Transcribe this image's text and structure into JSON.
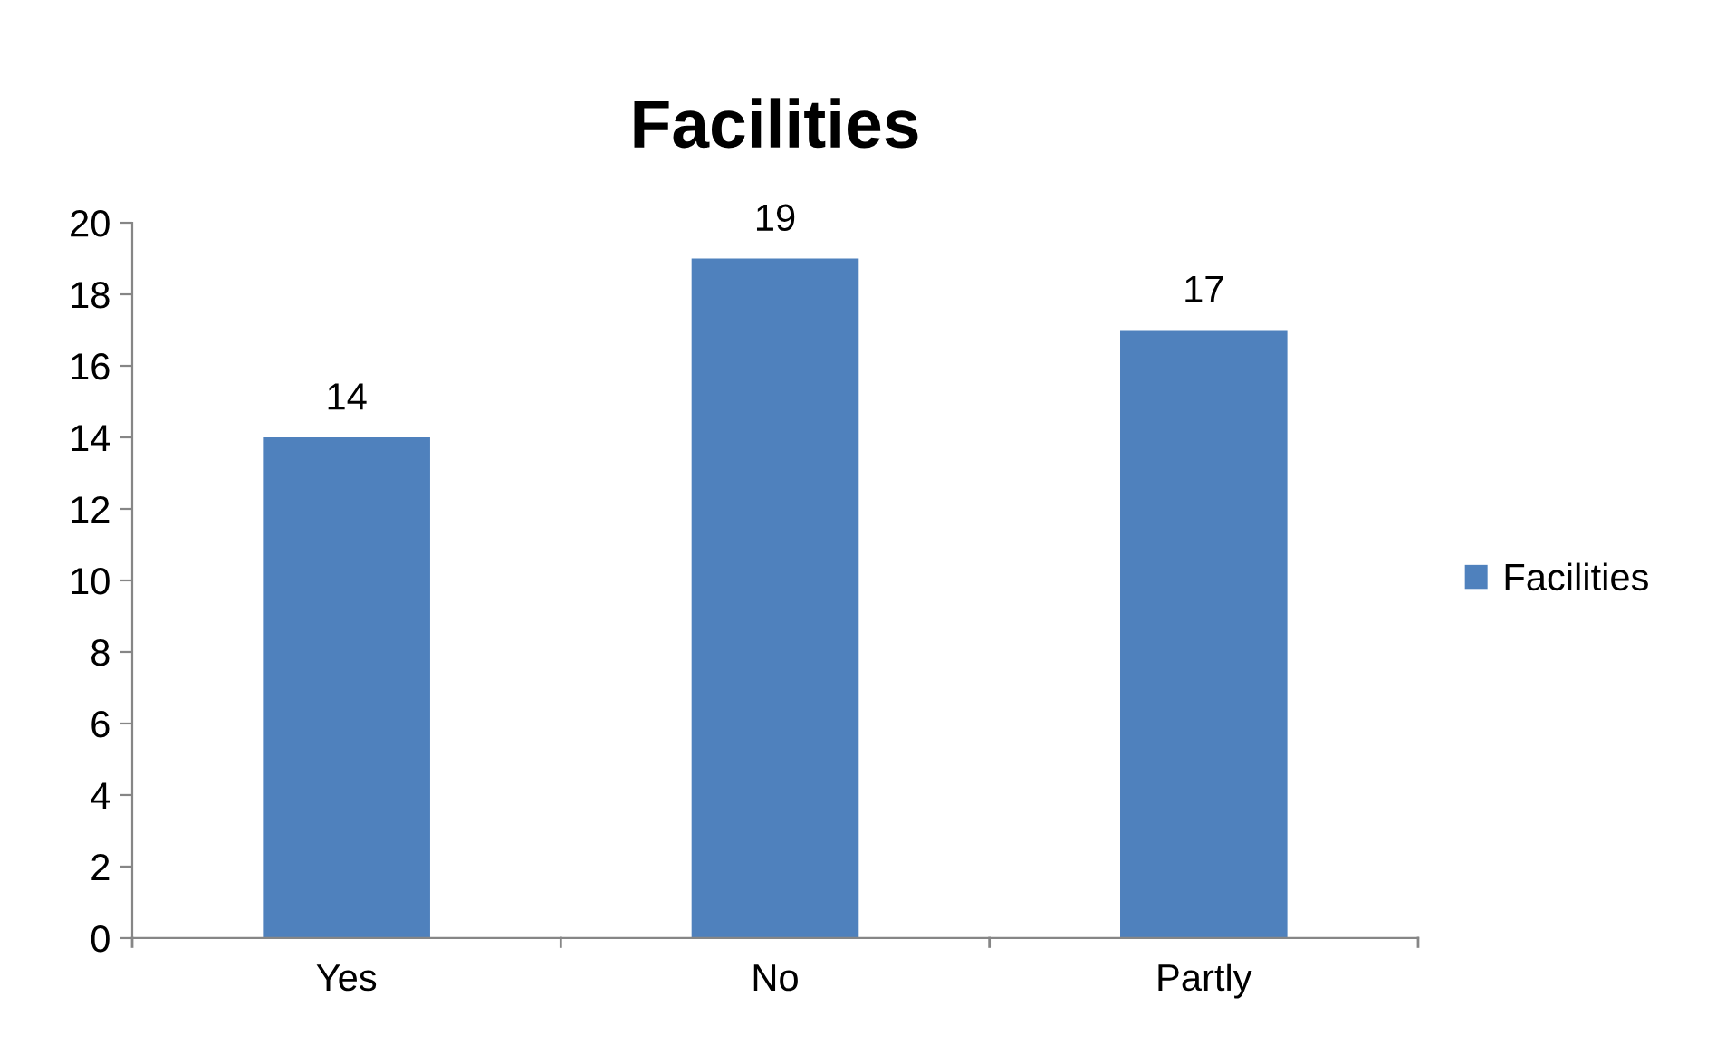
{
  "chart_data": {
    "type": "bar",
    "title": "Facilities",
    "categories": [
      "Yes",
      "No",
      "Partly"
    ],
    "series": [
      {
        "name": "Facilities",
        "color": "#4f81bd",
        "values": [
          14,
          19,
          17
        ]
      }
    ],
    "ylim": [
      0,
      20
    ],
    "yticks": [
      0,
      2,
      4,
      6,
      8,
      10,
      12,
      14,
      16,
      18,
      20
    ],
    "grid": false,
    "legend": "right",
    "data_labels": true
  }
}
